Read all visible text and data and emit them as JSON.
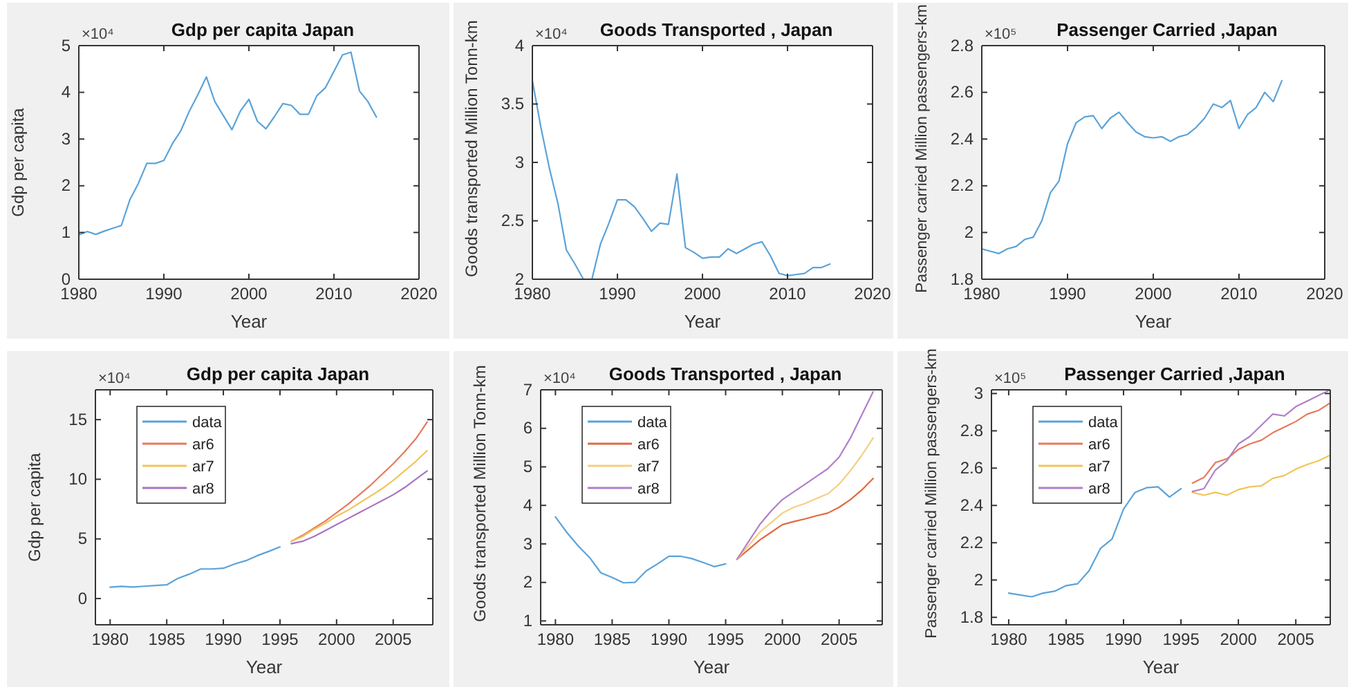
{
  "chart_data": [
    {
      "type": "line",
      "title": "Gdp per capita Japan",
      "xlabel": "Year",
      "ylabel": "Gdp per capita",
      "annotations": [
        "×10⁴"
      ],
      "xlim": [
        1980,
        2020
      ],
      "xticks": [
        1980,
        1990,
        2000,
        2010,
        2020
      ],
      "ylim": [
        0,
        5
      ],
      "yticks": [
        0,
        1,
        2,
        3,
        4,
        5
      ],
      "grid": false,
      "legend": false,
      "x": [
        1980,
        1981,
        1982,
        1983,
        1984,
        1985,
        1986,
        1987,
        1988,
        1989,
        1990,
        1991,
        1992,
        1993,
        1994,
        1995,
        1996,
        1997,
        1998,
        1999,
        2000,
        2001,
        2002,
        2003,
        2004,
        2005,
        2006,
        2007,
        2008,
        2009,
        2010,
        2011,
        2012,
        2013,
        2014,
        2015
      ],
      "series": [
        {
          "color": "#5ba3d9",
          "values": [
            0.95,
            1.02,
            0.96,
            1.03,
            1.09,
            1.15,
            1.7,
            2.05,
            2.48,
            2.48,
            2.54,
            2.9,
            3.18,
            3.6,
            3.95,
            4.33,
            3.8,
            3.5,
            3.2,
            3.6,
            3.85,
            3.38,
            3.22,
            3.48,
            3.76,
            3.72,
            3.53,
            3.53,
            3.93,
            4.1,
            4.45,
            4.8,
            4.86,
            4.03,
            3.8,
            3.47
          ]
        }
      ]
    },
    {
      "type": "line",
      "title": "Goods Transported , Japan",
      "xlabel": "Year",
      "ylabel": "Goods transported Million Tonn-km",
      "annotations": [
        "×10⁴"
      ],
      "xlim": [
        1980,
        2020
      ],
      "xticks": [
        1980,
        1990,
        2000,
        2010,
        2020
      ],
      "ylim": [
        2,
        4
      ],
      "yticks": [
        2,
        2.5,
        3,
        3.5,
        4
      ],
      "grid": false,
      "legend": false,
      "x": [
        1980,
        1981,
        1982,
        1983,
        1984,
        1985,
        1986,
        1987,
        1988,
        1989,
        1990,
        1991,
        1992,
        1993,
        1994,
        1995,
        1996,
        1997,
        1998,
        1999,
        2000,
        2001,
        2002,
        2003,
        2004,
        2005,
        2006,
        2007,
        2008,
        2009,
        2010,
        2011,
        2012,
        2013,
        2014,
        2015
      ],
      "series": [
        {
          "color": "#5ba3d9",
          "values": [
            3.7,
            3.3,
            2.95,
            2.65,
            2.25,
            2.13,
            2.0,
            2.0,
            2.3,
            2.48,
            2.68,
            2.68,
            2.62,
            2.52,
            2.41,
            2.48,
            2.47,
            2.9,
            2.27,
            2.23,
            2.18,
            2.19,
            2.19,
            2.26,
            2.22,
            2.26,
            2.3,
            2.32,
            2.2,
            2.05,
            2.03,
            2.04,
            2.05,
            2.1,
            2.1,
            2.13
          ]
        }
      ]
    },
    {
      "type": "line",
      "title": "Passenger Carried ,Japan",
      "xlabel": "Year",
      "ylabel": "Passenger carried Million passengers-km",
      "annotations": [
        "×10⁵"
      ],
      "xlim": [
        1980,
        2020
      ],
      "xticks": [
        1980,
        1990,
        2000,
        2010,
        2020
      ],
      "ylim": [
        1.8,
        2.8
      ],
      "yticks": [
        1.8,
        2,
        2.2,
        2.4,
        2.6,
        2.8
      ],
      "grid": false,
      "legend": false,
      "x": [
        1980,
        1981,
        1982,
        1983,
        1984,
        1985,
        1986,
        1987,
        1988,
        1989,
        1990,
        1991,
        1992,
        1993,
        1994,
        1995,
        1996,
        1997,
        1998,
        1999,
        2000,
        2001,
        2002,
        2003,
        2004,
        2005,
        2006,
        2007,
        2008,
        2009,
        2010,
        2011,
        2012,
        2013,
        2014,
        2015
      ],
      "series": [
        {
          "color": "#5ba3d9",
          "values": [
            1.93,
            1.92,
            1.91,
            1.93,
            1.94,
            1.97,
            1.98,
            2.05,
            2.17,
            2.22,
            2.38,
            2.47,
            2.495,
            2.5,
            2.445,
            2.49,
            2.515,
            2.47,
            2.43,
            2.41,
            2.405,
            2.41,
            2.39,
            2.41,
            2.42,
            2.45,
            2.49,
            2.55,
            2.535,
            2.565,
            2.445,
            2.505,
            2.535,
            2.6,
            2.56,
            2.65
          ]
        }
      ]
    },
    {
      "type": "line",
      "title": "Gdp per capita Japan",
      "xlabel": "Year",
      "ylabel": "Gdp per capita",
      "annotations": [
        "×10⁴"
      ],
      "xlim": [
        1978.7,
        2008.5
      ],
      "xticks": [
        1980,
        1985,
        1990,
        1995,
        2000,
        2005
      ],
      "ylim": [
        -2.2,
        17.5
      ],
      "yticks": [
        0,
        5,
        10,
        15
      ],
      "grid": false,
      "legend": "top left",
      "series": [
        {
          "name": "data",
          "color": "#5ba3d9",
          "x": [
            1980,
            1981,
            1982,
            1983,
            1984,
            1985,
            1986,
            1987,
            1988,
            1989,
            1990,
            1991,
            1992,
            1993,
            1994,
            1995
          ],
          "values": [
            0.95,
            1.02,
            0.96,
            1.03,
            1.09,
            1.15,
            1.7,
            2.05,
            2.48,
            2.48,
            2.54,
            2.9,
            3.18,
            3.6,
            3.95,
            4.33
          ]
        },
        {
          "name": "ar6",
          "color": "#e8795a",
          "x": [
            1996,
            1997,
            1998,
            1999,
            2000,
            2001,
            2002,
            2003,
            2004,
            2005,
            2006,
            2007,
            2008
          ],
          "values": [
            4.8,
            5.3,
            5.9,
            6.5,
            7.2,
            7.9,
            8.7,
            9.5,
            10.4,
            11.3,
            12.3,
            13.4,
            14.8
          ]
        },
        {
          "name": "ar7",
          "color": "#f2c45a",
          "x": [
            1996,
            1997,
            1998,
            1999,
            2000,
            2001,
            2002,
            2003,
            2004,
            2005,
            2006,
            2007,
            2008
          ],
          "values": [
            4.8,
            5.2,
            5.8,
            6.3,
            6.9,
            7.4,
            8.0,
            8.6,
            9.2,
            9.9,
            10.7,
            11.5,
            12.4
          ]
        },
        {
          "name": "ar8",
          "color": "#a874c0",
          "x": [
            1996,
            1997,
            1998,
            1999,
            2000,
            2001,
            2002,
            2003,
            2004,
            2005,
            2006,
            2007,
            2008
          ],
          "values": [
            4.6,
            4.8,
            5.2,
            5.7,
            6.2,
            6.7,
            7.2,
            7.7,
            8.2,
            8.7,
            9.3,
            10.0,
            10.7
          ]
        }
      ]
    },
    {
      "type": "line",
      "title": "Goods Transported , Japan",
      "xlabel": "Year",
      "ylabel": "Goods transported Million Tonn-km",
      "annotations": [
        "×10⁴"
      ],
      "xlim": [
        1978.7,
        2008.8
      ],
      "xticks": [
        1980,
        1985,
        1990,
        1995,
        2000,
        2005
      ],
      "ylim": [
        0.9,
        7
      ],
      "yticks": [
        1,
        2,
        3,
        4,
        5,
        6,
        7
      ],
      "grid": false,
      "legend": "top left",
      "series": [
        {
          "name": "data",
          "color": "#5ba3d9",
          "x": [
            1980,
            1981,
            1982,
            1983,
            1984,
            1985,
            1986,
            1987,
            1988,
            1989,
            1990,
            1991,
            1992,
            1993,
            1994,
            1995
          ],
          "values": [
            3.7,
            3.3,
            2.95,
            2.65,
            2.25,
            2.13,
            1.99,
            2.0,
            2.3,
            2.48,
            2.68,
            2.68,
            2.62,
            2.52,
            2.41,
            2.48
          ]
        },
        {
          "name": "ar6",
          "color": "#e06a40",
          "x": [
            1996,
            1997,
            1998,
            1999,
            2000,
            2001,
            2002,
            2003,
            2004,
            2005,
            2006,
            2007,
            2008
          ],
          "values": [
            2.6,
            2.85,
            3.1,
            3.3,
            3.5,
            3.58,
            3.65,
            3.73,
            3.8,
            3.95,
            4.15,
            4.4,
            4.7
          ]
        },
        {
          "name": "ar7",
          "color": "#f5cf80",
          "x": [
            1996,
            1997,
            1998,
            1999,
            2000,
            2001,
            2002,
            2003,
            2004,
            2005,
            2006,
            2007,
            2008
          ],
          "values": [
            2.6,
            2.95,
            3.3,
            3.55,
            3.8,
            3.95,
            4.05,
            4.18,
            4.3,
            4.55,
            4.9,
            5.3,
            5.75
          ]
        },
        {
          "name": "ar8",
          "color": "#b07fc8",
          "x": [
            1996,
            1997,
            1998,
            1999,
            2000,
            2001,
            2002,
            2003,
            2004,
            2005,
            2006,
            2007,
            2008
          ],
          "values": [
            2.6,
            3.05,
            3.5,
            3.85,
            4.15,
            4.35,
            4.55,
            4.75,
            4.95,
            5.25,
            5.75,
            6.35,
            6.95
          ]
        }
      ]
    },
    {
      "type": "line",
      "title": "Passenger Carried ,Japan",
      "xlabel": "Year",
      "ylabel": "Passenger carried Million passengers-km",
      "annotations": [
        "×10⁵"
      ],
      "xlim": [
        1978.5,
        2008
      ],
      "xticks": [
        1980,
        1985,
        1990,
        1995,
        2000,
        2005
      ],
      "ylim": [
        1.76,
        3.02
      ],
      "yticks": [
        1.8,
        2,
        2.2,
        2.4,
        2.6,
        2.8,
        3
      ],
      "grid": false,
      "legend": "top left",
      "series": [
        {
          "name": "data",
          "color": "#5ba3d9",
          "x": [
            1980,
            1981,
            1982,
            1983,
            1984,
            1985,
            1986,
            1987,
            1988,
            1989,
            1990,
            1991,
            1992,
            1993,
            1994,
            1995
          ],
          "values": [
            1.93,
            1.92,
            1.91,
            1.93,
            1.94,
            1.97,
            1.98,
            2.05,
            2.17,
            2.22,
            2.38,
            2.47,
            2.495,
            2.5,
            2.445,
            2.49
          ]
        },
        {
          "name": "ar6",
          "color": "#e8795a",
          "x": [
            1996,
            1997,
            1998,
            1999,
            2000,
            2001,
            2002,
            2003,
            2004,
            2005,
            2006,
            2007,
            2008
          ],
          "values": [
            2.52,
            2.55,
            2.63,
            2.65,
            2.7,
            2.73,
            2.75,
            2.79,
            2.82,
            2.85,
            2.89,
            2.91,
            2.95
          ]
        },
        {
          "name": "ar7",
          "color": "#f2c45a",
          "x": [
            1996,
            1997,
            1998,
            1999,
            2000,
            2001,
            2002,
            2003,
            2004,
            2005,
            2006,
            2007,
            2008
          ],
          "values": [
            2.47,
            2.455,
            2.47,
            2.455,
            2.485,
            2.5,
            2.505,
            2.545,
            2.56,
            2.595,
            2.62,
            2.64,
            2.67
          ]
        },
        {
          "name": "ar8",
          "color": "#b07fc8",
          "x": [
            1996,
            1997,
            1998,
            1999,
            2000,
            2001,
            2002,
            2003,
            2004,
            2005,
            2006,
            2007,
            2008
          ],
          "values": [
            2.475,
            2.49,
            2.59,
            2.64,
            2.73,
            2.77,
            2.83,
            2.89,
            2.88,
            2.93,
            2.96,
            2.99,
            3.02
          ]
        }
      ]
    }
  ]
}
